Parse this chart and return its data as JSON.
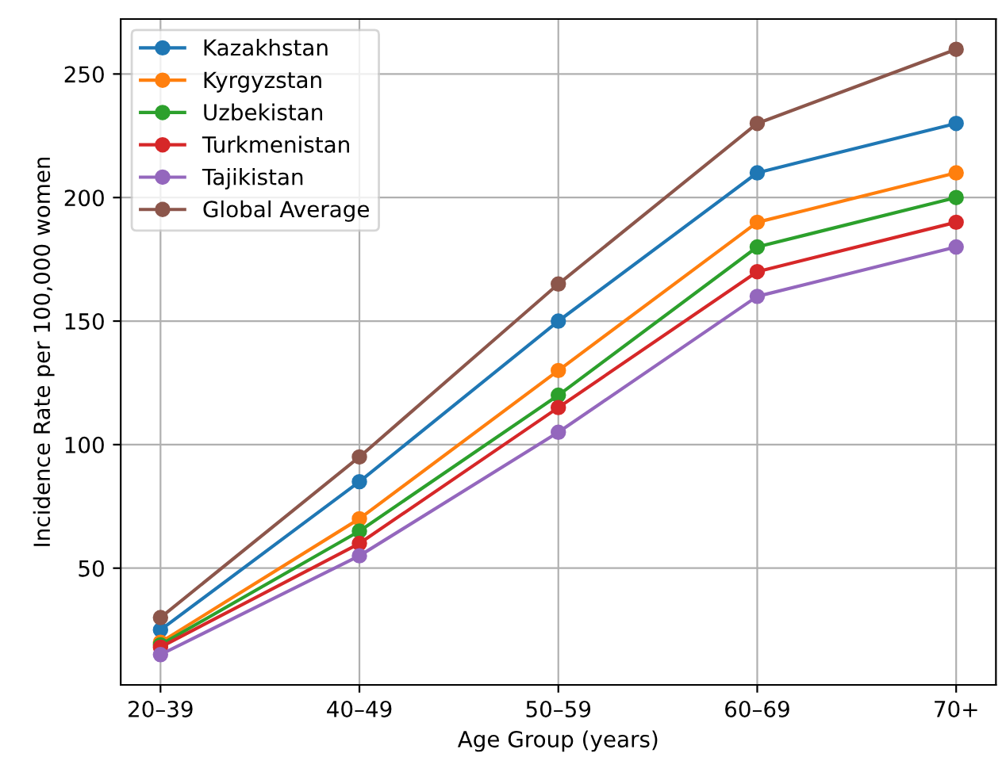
{
  "chart_data": {
    "type": "line",
    "xlabel": "Age Group (years)",
    "ylabel": "Incidence Rate per 100,000 women",
    "categories": [
      "20–39",
      "40–49",
      "50–59",
      "60–69",
      "70+"
    ],
    "series": [
      {
        "name": "Kazakhstan",
        "color": "#1f77b4",
        "values": [
          25,
          85,
          150,
          210,
          230
        ]
      },
      {
        "name": "Kyrgyzstan",
        "color": "#ff7f0e",
        "values": [
          20,
          70,
          130,
          190,
          210
        ]
      },
      {
        "name": "Uzbekistan",
        "color": "#2ca02c",
        "values": [
          19,
          65,
          120,
          180,
          200
        ]
      },
      {
        "name": "Turkmenistan",
        "color": "#d62728",
        "values": [
          18,
          60,
          115,
          170,
          190
        ]
      },
      {
        "name": "Tajikistan",
        "color": "#9467bd",
        "values": [
          15,
          55,
          105,
          160,
          180
        ]
      },
      {
        "name": "Global Average",
        "color": "#8c564b",
        "values": [
          30,
          95,
          165,
          230,
          260
        ]
      }
    ],
    "ylim": [
      2.75,
      272.25
    ],
    "yticks": [
      50,
      100,
      150,
      200,
      250
    ],
    "grid": true,
    "legend": "top left",
    "marker": "circle",
    "line_style": "solid"
  }
}
